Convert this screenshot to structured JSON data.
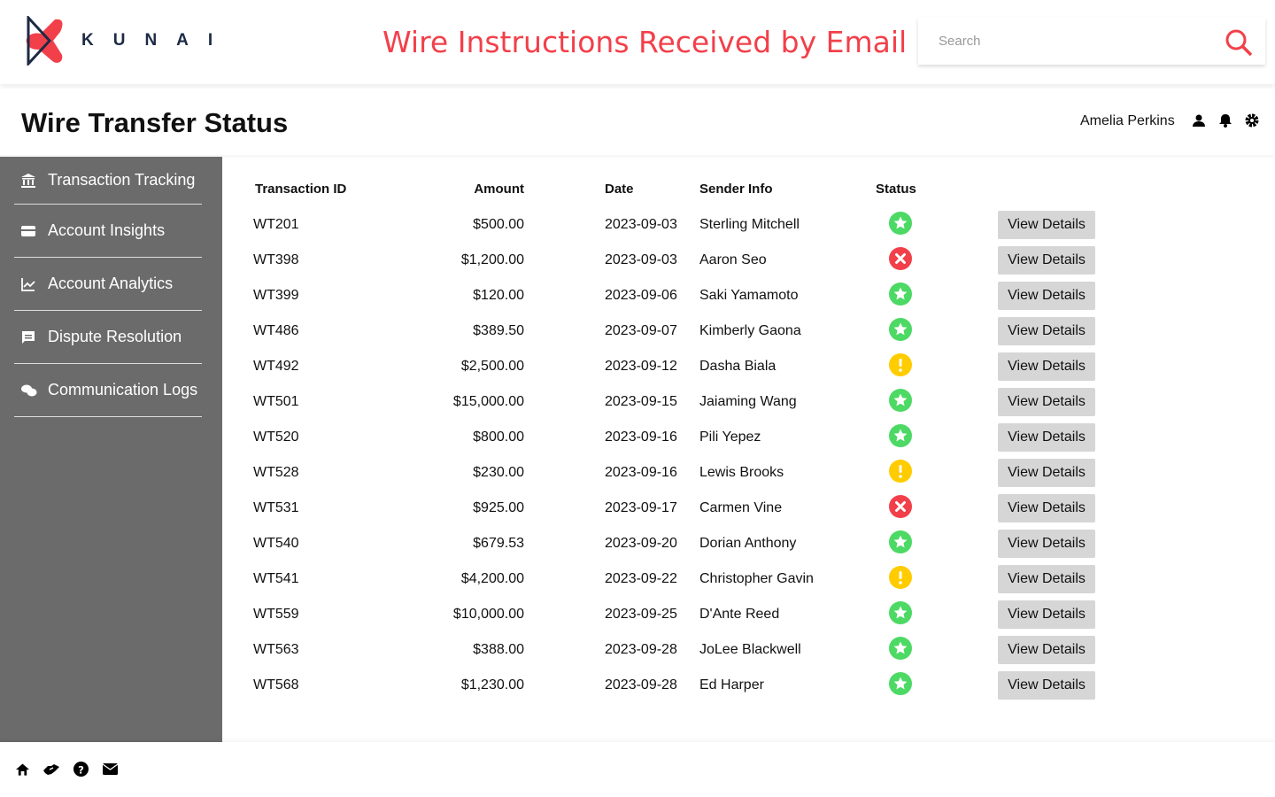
{
  "brand": {
    "name": "KUNAI",
    "accent": "#f2404a"
  },
  "header": {
    "title": "Wire Instructions Received by Email",
    "search_placeholder": "Search"
  },
  "page": {
    "title": "Wire Transfer Status",
    "user": "Amelia Perkins"
  },
  "sidebar": {
    "items": [
      {
        "label": "Transaction Tracking",
        "icon": "bank-icon"
      },
      {
        "label": "Account Insights",
        "icon": "credit-card-icon"
      },
      {
        "label": "Account Analytics",
        "icon": "line-chart-icon"
      },
      {
        "label": "Dispute Resolution",
        "icon": "message-icon"
      },
      {
        "label": "Communication Logs",
        "icon": "chat-icon"
      }
    ]
  },
  "table": {
    "headers": [
      "Transaction ID",
      "Amount",
      "Date",
      "Sender Info",
      "Status"
    ],
    "action_label": "View Details",
    "status_colors": {
      "success": "#4cd964",
      "failed": "#f2404a",
      "pending": "#ffcc00"
    },
    "rows": [
      {
        "id": "WT201",
        "amount": "$500.00",
        "date": "2023-09-03",
        "sender": "Sterling Mitchell",
        "status": "success"
      },
      {
        "id": "WT398",
        "amount": "$1,200.00",
        "date": "2023-09-03",
        "sender": "Aaron Seo",
        "status": "failed"
      },
      {
        "id": "WT399",
        "amount": "$120.00",
        "date": "2023-09-06",
        "sender": "Saki Yamamoto",
        "status": "success"
      },
      {
        "id": "WT486",
        "amount": "$389.50",
        "date": "2023-09-07",
        "sender": "Kimberly Gaona",
        "status": "success"
      },
      {
        "id": "WT492",
        "amount": "$2,500.00",
        "date": "2023-09-12",
        "sender": "Dasha Biala",
        "status": "pending"
      },
      {
        "id": "WT501",
        "amount": "$15,000.00",
        "date": "2023-09-15",
        "sender": "Jaiaming Wang",
        "status": "success"
      },
      {
        "id": "WT520",
        "amount": "$800.00",
        "date": "2023-09-16",
        "sender": "Pili Yepez",
        "status": "success"
      },
      {
        "id": "WT528",
        "amount": "$230.00",
        "date": "2023-09-16",
        "sender": "Lewis Brooks",
        "status": "pending"
      },
      {
        "id": "WT531",
        "amount": "$925.00",
        "date": "2023-09-17",
        "sender": "Carmen Vine",
        "status": "failed"
      },
      {
        "id": "WT540",
        "amount": "$679.53",
        "date": "2023-09-20",
        "sender": "Dorian Anthony",
        "status": "success"
      },
      {
        "id": "WT541",
        "amount": "$4,200.00",
        "date": "2023-09-22",
        "sender": "Christopher Gavin",
        "status": "pending"
      },
      {
        "id": "WT559",
        "amount": "$10,000.00",
        "date": "2023-09-25",
        "sender": "D'Ante Reed",
        "status": "success"
      },
      {
        "id": "WT563",
        "amount": "$388.00",
        "date": "2023-09-28",
        "sender": "JoLee Blackwell",
        "status": "success"
      },
      {
        "id": "WT568",
        "amount": "$1,230.00",
        "date": "2023-09-28",
        "sender": "Ed Harper",
        "status": "success"
      }
    ]
  },
  "footer": {
    "icons": [
      "home-icon",
      "handshake-icon",
      "help-icon",
      "mail-icon"
    ]
  }
}
